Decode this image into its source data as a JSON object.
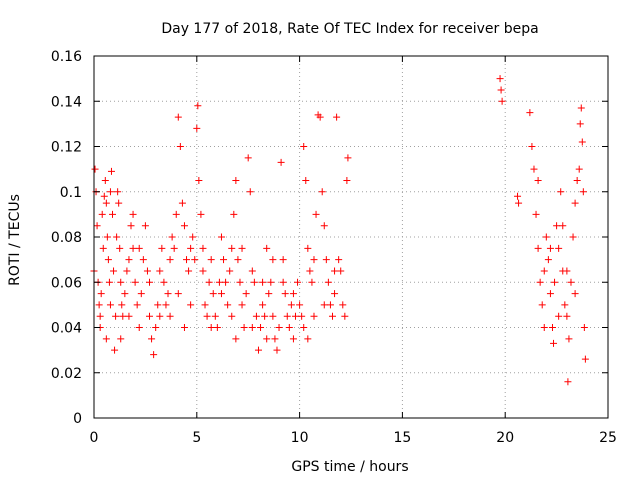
{
  "chart_data": {
    "type": "scatter",
    "title": "Day 177 of 2018, Rate Of TEC Index for receiver bepa",
    "xlabel": "GPS time / hours",
    "ylabel": "ROTI / TECUs",
    "xlim": [
      0,
      25
    ],
    "ylim": [
      0,
      0.16
    ],
    "xticks": [
      0,
      5,
      10,
      15,
      20,
      25
    ],
    "yticks": [
      0,
      0.02,
      0.04,
      0.06,
      0.08,
      0.1,
      0.12,
      0.14,
      0.16
    ],
    "xtick_labels": [
      "0",
      "5",
      "10",
      "15",
      "20",
      "25"
    ],
    "ytick_labels": [
      "0",
      "0.02",
      "0.04",
      "0.06",
      "0.08",
      "0.1",
      "0.12",
      "0.14",
      "0.16"
    ],
    "grid": true,
    "marker": "+",
    "color": "#ff0000",
    "series": [
      {
        "name": "ROTI",
        "points": [
          [
            0.0,
            0.065
          ],
          [
            0.05,
            0.11
          ],
          [
            0.1,
            0.1
          ],
          [
            0.15,
            0.085
          ],
          [
            0.2,
            0.06
          ],
          [
            0.25,
            0.05
          ],
          [
            0.3,
            0.04
          ],
          [
            0.35,
            0.055
          ],
          [
            0.4,
            0.09
          ],
          [
            0.45,
            0.075
          ],
          [
            0.5,
            0.098
          ],
          [
            0.55,
            0.105
          ],
          [
            0.6,
            0.095
          ],
          [
            0.65,
            0.08
          ],
          [
            0.7,
            0.07
          ],
          [
            0.75,
            0.06
          ],
          [
            0.8,
            0.1
          ],
          [
            0.85,
            0.109
          ],
          [
            0.9,
            0.09
          ],
          [
            0.95,
            0.065
          ],
          [
            1.0,
            0.03
          ],
          [
            1.05,
            0.045
          ],
          [
            1.1,
            0.08
          ],
          [
            1.15,
            0.1
          ],
          [
            1.2,
            0.095
          ],
          [
            1.25,
            0.075
          ],
          [
            1.3,
            0.06
          ],
          [
            1.35,
            0.05
          ],
          [
            1.4,
            0.045
          ],
          [
            1.5,
            0.055
          ],
          [
            1.6,
            0.065
          ],
          [
            1.7,
            0.07
          ],
          [
            1.8,
            0.085
          ],
          [
            1.9,
            0.075
          ],
          [
            2.0,
            0.06
          ],
          [
            2.1,
            0.05
          ],
          [
            2.2,
            0.04
          ],
          [
            2.3,
            0.055
          ],
          [
            2.4,
            0.07
          ],
          [
            2.5,
            0.085
          ],
          [
            2.6,
            0.065
          ],
          [
            2.7,
            0.045
          ],
          [
            2.8,
            0.035
          ],
          [
            2.9,
            0.028
          ],
          [
            3.0,
            0.04
          ],
          [
            3.1,
            0.05
          ],
          [
            3.2,
            0.065
          ],
          [
            3.3,
            0.075
          ],
          [
            3.4,
            0.06
          ],
          [
            3.5,
            0.05
          ],
          [
            3.6,
            0.055
          ],
          [
            3.7,
            0.07
          ],
          [
            3.8,
            0.08
          ],
          [
            3.9,
            0.075
          ],
          [
            4.0,
            0.09
          ],
          [
            4.1,
            0.133
          ],
          [
            4.2,
            0.12
          ],
          [
            4.3,
            0.095
          ],
          [
            4.4,
            0.085
          ],
          [
            4.5,
            0.07
          ],
          [
            4.6,
            0.065
          ],
          [
            4.7,
            0.075
          ],
          [
            4.8,
            0.08
          ],
          [
            4.9,
            0.07
          ],
          [
            5.0,
            0.128
          ],
          [
            5.05,
            0.138
          ],
          [
            5.1,
            0.105
          ],
          [
            5.2,
            0.09
          ],
          [
            5.3,
            0.065
          ],
          [
            5.4,
            0.05
          ],
          [
            5.5,
            0.045
          ],
          [
            5.6,
            0.06
          ],
          [
            5.7,
            0.07
          ],
          [
            5.8,
            0.055
          ],
          [
            5.9,
            0.045
          ],
          [
            6.0,
            0.04
          ],
          [
            6.1,
            0.06
          ],
          [
            6.2,
            0.08
          ],
          [
            6.3,
            0.07
          ],
          [
            6.4,
            0.06
          ],
          [
            6.5,
            0.05
          ],
          [
            6.6,
            0.065
          ],
          [
            6.7,
            0.075
          ],
          [
            6.8,
            0.09
          ],
          [
            6.9,
            0.105
          ],
          [
            7.0,
            0.07
          ],
          [
            7.1,
            0.06
          ],
          [
            7.2,
            0.05
          ],
          [
            7.3,
            0.04
          ],
          [
            7.4,
            0.055
          ],
          [
            7.5,
            0.115
          ],
          [
            7.6,
            0.1
          ],
          [
            7.7,
            0.065
          ],
          [
            7.8,
            0.06
          ],
          [
            7.9,
            0.045
          ],
          [
            8.0,
            0.03
          ],
          [
            8.1,
            0.04
          ],
          [
            8.2,
            0.05
          ],
          [
            8.3,
            0.045
          ],
          [
            8.4,
            0.035
          ],
          [
            8.5,
            0.055
          ],
          [
            8.6,
            0.06
          ],
          [
            8.7,
            0.045
          ],
          [
            8.8,
            0.035
          ],
          [
            8.9,
            0.03
          ],
          [
            9.0,
            0.04
          ],
          [
            9.1,
            0.113
          ],
          [
            9.2,
            0.07
          ],
          [
            9.3,
            0.055
          ],
          [
            9.4,
            0.045
          ],
          [
            9.5,
            0.04
          ],
          [
            9.6,
            0.05
          ],
          [
            9.7,
            0.055
          ],
          [
            9.8,
            0.045
          ],
          [
            9.9,
            0.06
          ],
          [
            10.0,
            0.05
          ],
          [
            10.1,
            0.045
          ],
          [
            10.2,
            0.12
          ],
          [
            10.3,
            0.105
          ],
          [
            10.4,
            0.075
          ],
          [
            10.5,
            0.065
          ],
          [
            10.6,
            0.06
          ],
          [
            10.7,
            0.07
          ],
          [
            10.8,
            0.09
          ],
          [
            10.9,
            0.134
          ],
          [
            11.0,
            0.133
          ],
          [
            11.1,
            0.1
          ],
          [
            11.2,
            0.085
          ],
          [
            11.3,
            0.07
          ],
          [
            11.4,
            0.06
          ],
          [
            11.5,
            0.05
          ],
          [
            11.6,
            0.045
          ],
          [
            11.7,
            0.055
          ],
          [
            11.8,
            0.133
          ],
          [
            11.9,
            0.07
          ],
          [
            12.0,
            0.065
          ],
          [
            12.1,
            0.05
          ],
          [
            12.2,
            0.045
          ],
          [
            12.3,
            0.105
          ],
          [
            12.35,
            0.115
          ],
          [
            0.3,
            0.045
          ],
          [
            0.8,
            0.05
          ],
          [
            1.3,
            0.035
          ],
          [
            2.2,
            0.075
          ],
          [
            3.2,
            0.045
          ],
          [
            4.1,
            0.055
          ],
          [
            5.3,
            0.075
          ],
          [
            6.2,
            0.055
          ],
          [
            7.2,
            0.075
          ],
          [
            8.2,
            0.06
          ],
          [
            9.2,
            0.06
          ],
          [
            10.2,
            0.04
          ],
          [
            11.2,
            0.05
          ],
          [
            1.7,
            0.045
          ],
          [
            2.7,
            0.06
          ],
          [
            3.7,
            0.045
          ],
          [
            4.7,
            0.05
          ],
          [
            5.7,
            0.04
          ],
          [
            6.7,
            0.045
          ],
          [
            7.7,
            0.04
          ],
          [
            8.7,
            0.07
          ],
          [
            9.7,
            0.035
          ],
          [
            10.7,
            0.045
          ],
          [
            11.7,
            0.065
          ],
          [
            0.6,
            0.035
          ],
          [
            1.9,
            0.09
          ],
          [
            4.4,
            0.04
          ],
          [
            6.9,
            0.035
          ],
          [
            8.4,
            0.075
          ],
          [
            10.4,
            0.035
          ],
          [
            19.75,
            0.15
          ],
          [
            19.8,
            0.145
          ],
          [
            19.85,
            0.14
          ],
          [
            20.6,
            0.098
          ],
          [
            20.65,
            0.095
          ],
          [
            21.2,
            0.135
          ],
          [
            21.3,
            0.12
          ],
          [
            21.4,
            0.11
          ],
          [
            21.5,
            0.09
          ],
          [
            21.6,
            0.075
          ],
          [
            21.7,
            0.06
          ],
          [
            21.8,
            0.05
          ],
          [
            21.9,
            0.065
          ],
          [
            22.0,
            0.08
          ],
          [
            22.1,
            0.07
          ],
          [
            22.2,
            0.055
          ],
          [
            22.3,
            0.04
          ],
          [
            22.35,
            0.033
          ],
          [
            22.4,
            0.06
          ],
          [
            22.5,
            0.085
          ],
          [
            22.6,
            0.075
          ],
          [
            22.7,
            0.1
          ],
          [
            22.8,
            0.065
          ],
          [
            22.9,
            0.05
          ],
          [
            23.0,
            0.045
          ],
          [
            23.05,
            0.016
          ],
          [
            23.1,
            0.035
          ],
          [
            23.2,
            0.06
          ],
          [
            23.3,
            0.08
          ],
          [
            23.4,
            0.095
          ],
          [
            23.5,
            0.105
          ],
          [
            23.6,
            0.11
          ],
          [
            23.65,
            0.13
          ],
          [
            23.7,
            0.137
          ],
          [
            23.75,
            0.122
          ],
          [
            23.8,
            0.1
          ],
          [
            23.85,
            0.04
          ],
          [
            23.9,
            0.026
          ],
          [
            21.9,
            0.04
          ],
          [
            22.2,
            0.075
          ],
          [
            22.6,
            0.045
          ],
          [
            23.0,
            0.065
          ],
          [
            23.4,
            0.055
          ],
          [
            22.8,
            0.085
          ],
          [
            21.6,
            0.105
          ]
        ]
      }
    ]
  }
}
